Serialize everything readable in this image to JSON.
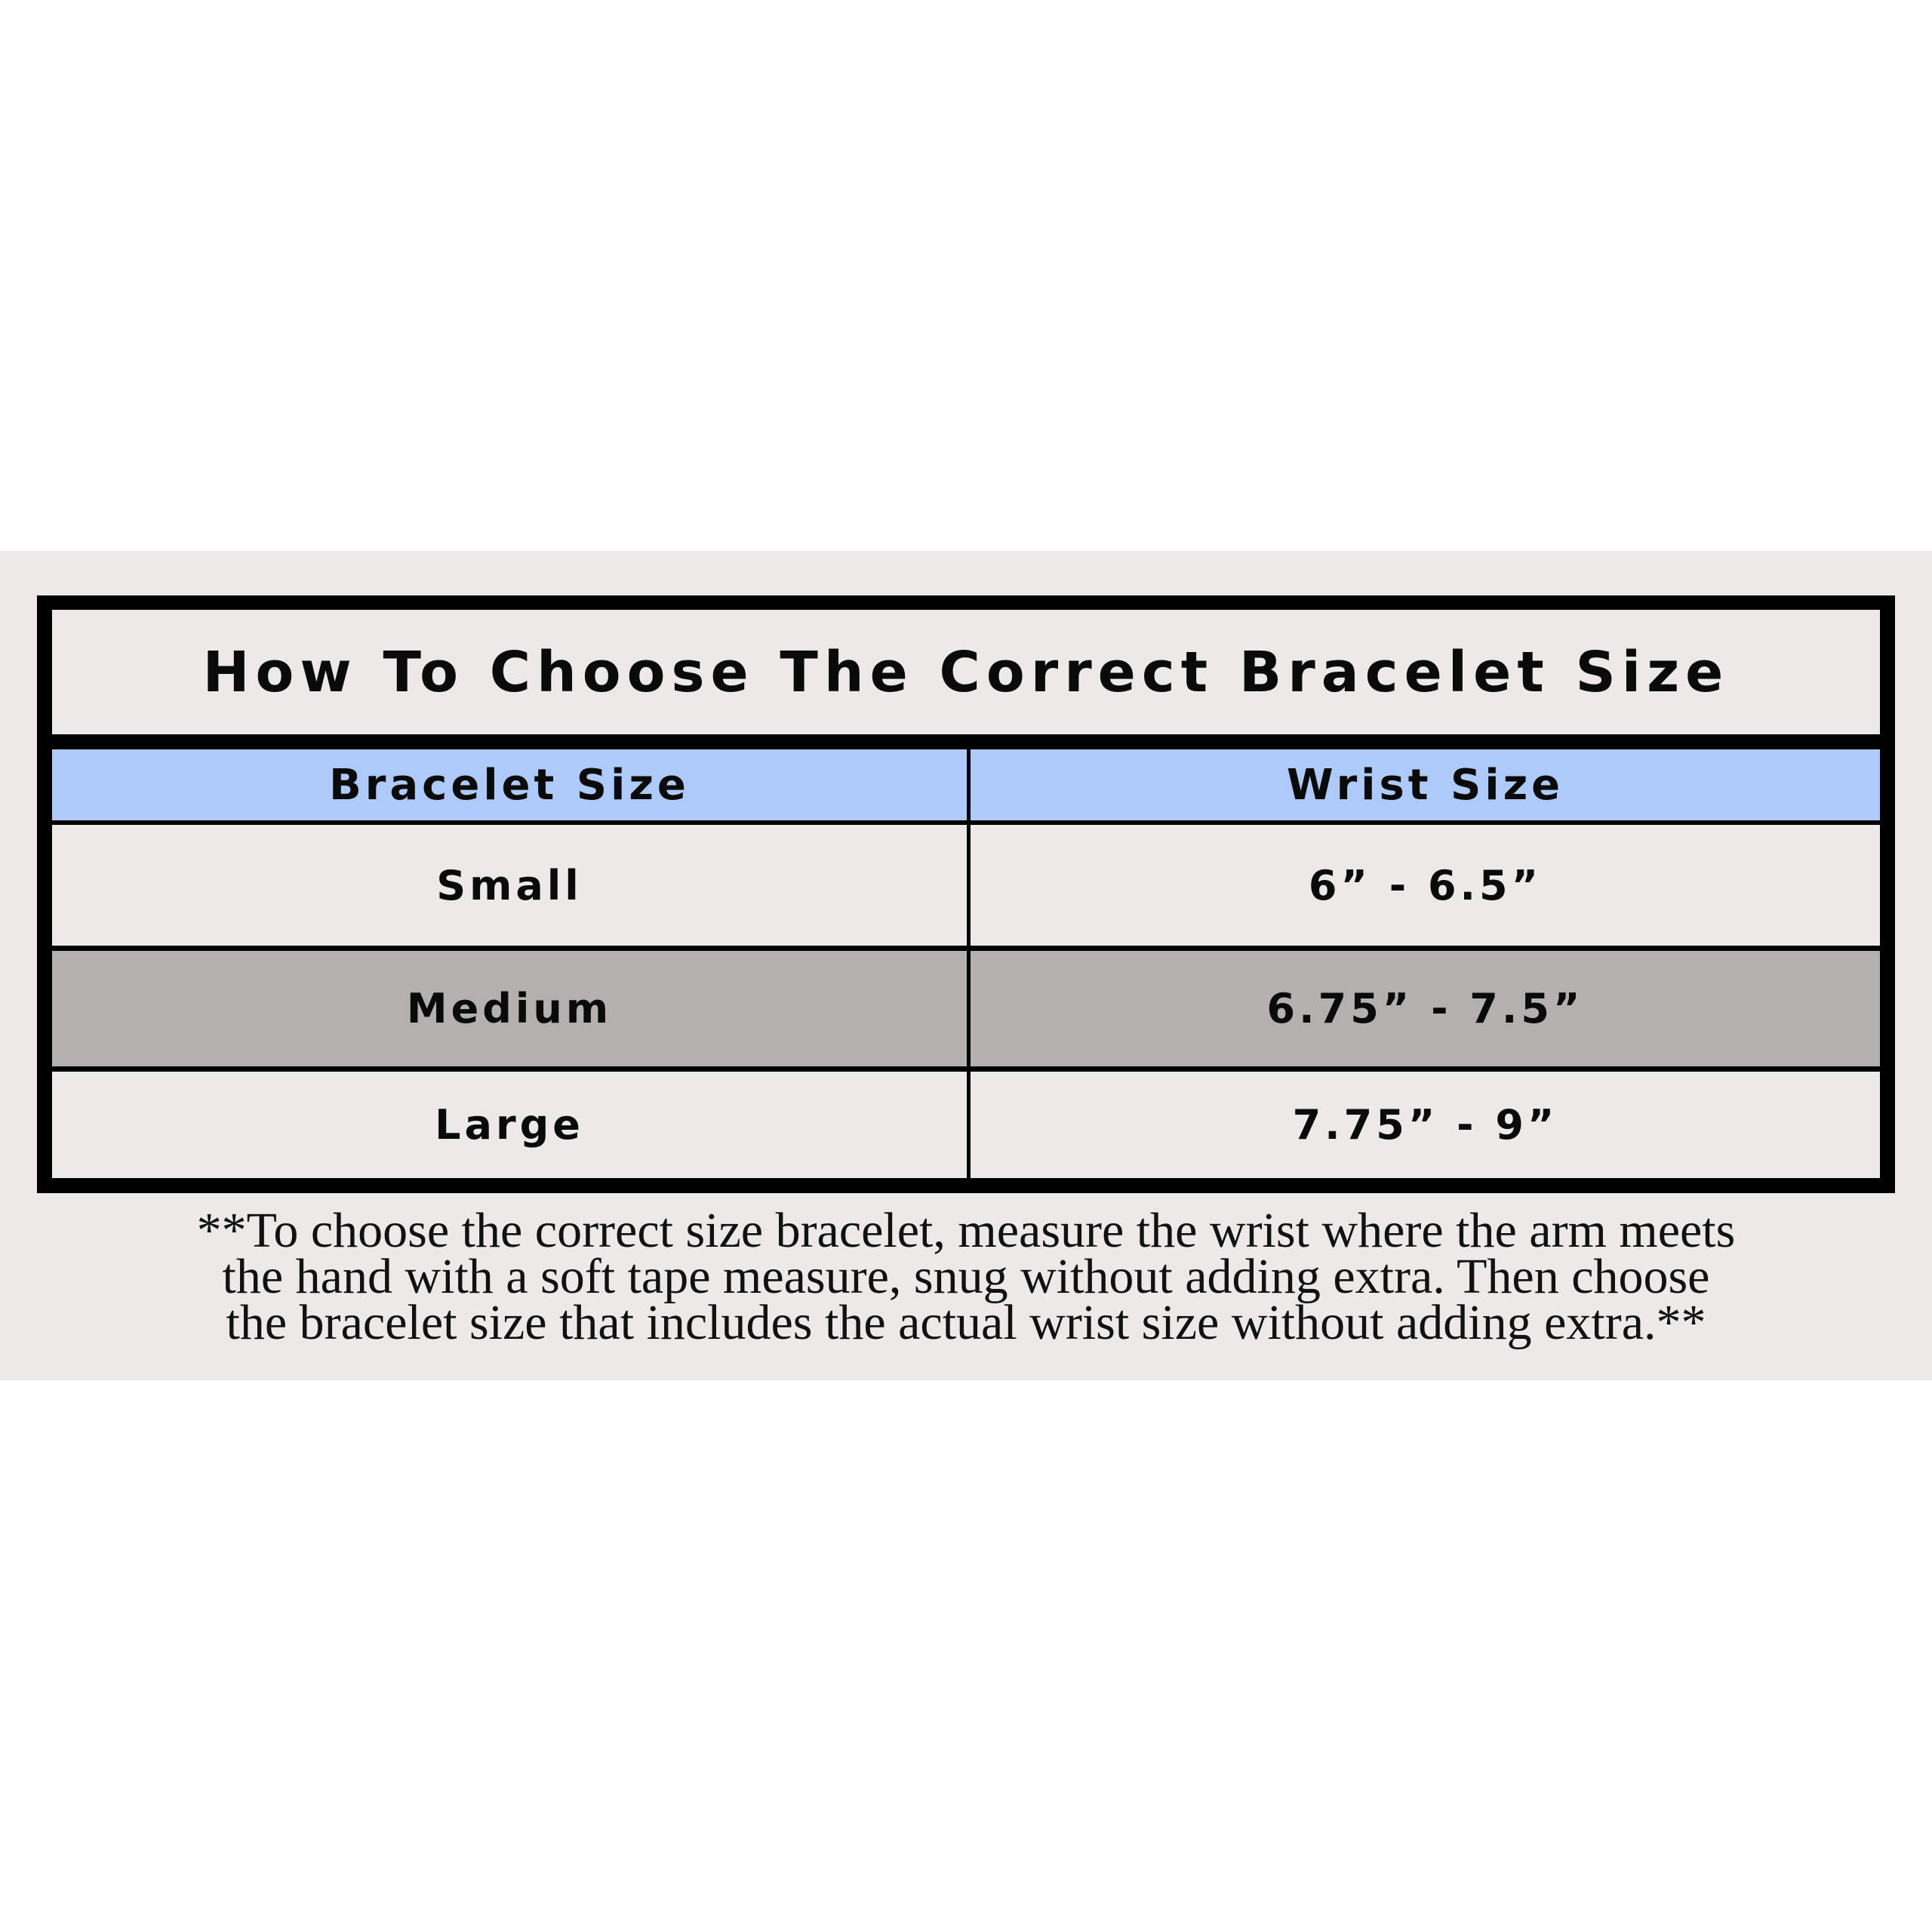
{
  "title": "How To Choose The Correct Bracelet Size",
  "columns": [
    "Bracelet Size",
    "Wrist Size"
  ],
  "rows": [
    {
      "bracelet_size": "Small",
      "wrist_size": "6” - 6.5”"
    },
    {
      "bracelet_size": "Medium",
      "wrist_size": "6.75” - 7.5”"
    },
    {
      "bracelet_size": "Large",
      "wrist_size": "7.75” - 9”"
    }
  ],
  "footnote": {
    "lines": [
      "**To choose the correct size bracelet, measure the wrist where the arm meets",
      "the hand with a soft tape measure, snug without adding extra. Then choose",
      "the bracelet size that includes the actual wrist size without adding extra.**"
    ]
  },
  "colors": {
    "header": "#aecaf8",
    "highlight_row": "#b3b0b0",
    "background": "#ece9e9",
    "border": "#000000"
  }
}
